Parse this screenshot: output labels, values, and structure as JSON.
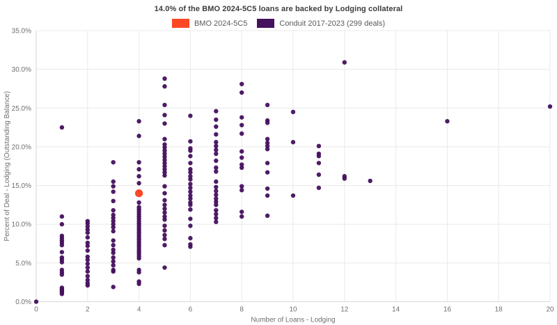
{
  "title": "14.0% of the BMO 2024-5C5 loans are backed by Lodging collateral",
  "legend": [
    {
      "label": "BMO 2024-5C5",
      "color": "#fb4724"
    },
    {
      "label": "Conduit 2017-2023 (299 deals)",
      "color": "#45105e"
    }
  ],
  "colors": {
    "grid": "#e9e9e9",
    "axis_line": "#d6d6d6",
    "tick_label": "#6e6e6e",
    "axis_title": "#6e6e6e"
  },
  "chart_data": {
    "type": "scatter",
    "title": "14.0% of the BMO 2024-5C5 loans are backed by Lodging collateral",
    "xlabel": "Number of Loans - Lodging",
    "ylabel": "Percent of Deal - Lodging (Outstanding Balance)",
    "xlim": [
      0,
      20
    ],
    "ylim": [
      0,
      35
    ],
    "grid": true,
    "legend_position": "top-center",
    "x_tick_values": [
      0,
      2,
      4,
      6,
      8,
      10,
      12,
      14,
      16,
      18,
      20
    ],
    "x_tick_labels": [
      "0",
      "2",
      "4",
      "6",
      "8",
      "10",
      "12",
      "14",
      "16",
      "18",
      "20"
    ],
    "y_tick_values": [
      0,
      5,
      10,
      15,
      20,
      25,
      30,
      35
    ],
    "y_tick_labels": [
      "0.0%",
      "5.0%",
      "10.0%",
      "15.0%",
      "20.0%",
      "25.0%",
      "30.0%",
      "35.0%"
    ],
    "series": [
      {
        "name": "Conduit 2017-2023 (299 deals)",
        "color": "#45105e",
        "marker_radius": 3.2,
        "points": [
          [
            0,
            0.0
          ],
          [
            1,
            22.5
          ],
          [
            1,
            11.0
          ],
          [
            1,
            10.0
          ],
          [
            1,
            8.5
          ],
          [
            1,
            8.2
          ],
          [
            1,
            7.9
          ],
          [
            1,
            7.6
          ],
          [
            1,
            7.3
          ],
          [
            1,
            6.4
          ],
          [
            1,
            5.7
          ],
          [
            1,
            5.4
          ],
          [
            1,
            5.1
          ],
          [
            1,
            4.1
          ],
          [
            1,
            3.8
          ],
          [
            1,
            3.5
          ],
          [
            1,
            1.8
          ],
          [
            1,
            1.6
          ],
          [
            1,
            1.5
          ],
          [
            1,
            1.3
          ],
          [
            1,
            1.2
          ],
          [
            1,
            1.0
          ],
          [
            2,
            10.4
          ],
          [
            2,
            10.1
          ],
          [
            2,
            9.7
          ],
          [
            2,
            9.3
          ],
          [
            2,
            8.9
          ],
          [
            2,
            8.3
          ],
          [
            2,
            7.6
          ],
          [
            2,
            7.2
          ],
          [
            2,
            6.6
          ],
          [
            2,
            5.8
          ],
          [
            2,
            5.4
          ],
          [
            2,
            4.9
          ],
          [
            2,
            4.4
          ],
          [
            2,
            3.9
          ],
          [
            2,
            3.3
          ],
          [
            2,
            2.8
          ],
          [
            2,
            2.4
          ],
          [
            2,
            2.1
          ],
          [
            3,
            18.0
          ],
          [
            3,
            15.5
          ],
          [
            3,
            14.9
          ],
          [
            3,
            14.2
          ],
          [
            3,
            13.0
          ],
          [
            3,
            11.8
          ],
          [
            3,
            11.2
          ],
          [
            3,
            10.8
          ],
          [
            3,
            10.4
          ],
          [
            3,
            10.0
          ],
          [
            3,
            9.6
          ],
          [
            3,
            9.1
          ],
          [
            3,
            7.9
          ],
          [
            3,
            7.3
          ],
          [
            3,
            6.7
          ],
          [
            3,
            6.3
          ],
          [
            3,
            5.7
          ],
          [
            3,
            5.2
          ],
          [
            3,
            4.7
          ],
          [
            3,
            4.1
          ],
          [
            3,
            3.9
          ],
          [
            3,
            1.9
          ],
          [
            4,
            23.3
          ],
          [
            4,
            21.4
          ],
          [
            4,
            18.0
          ],
          [
            4,
            17.1
          ],
          [
            4,
            16.2
          ],
          [
            4,
            15.3
          ],
          [
            4,
            12.8
          ],
          [
            4,
            12.2
          ],
          [
            4,
            11.9
          ],
          [
            4,
            11.6
          ],
          [
            4,
            11.3
          ],
          [
            4,
            11.0
          ],
          [
            4,
            10.7
          ],
          [
            4,
            10.4
          ],
          [
            4,
            10.1
          ],
          [
            4,
            9.8
          ],
          [
            4,
            9.5
          ],
          [
            4,
            9.2
          ],
          [
            4,
            8.9
          ],
          [
            4,
            8.6
          ],
          [
            4,
            8.3
          ],
          [
            4,
            8.0
          ],
          [
            4,
            7.7
          ],
          [
            4,
            7.4
          ],
          [
            4,
            7.1
          ],
          [
            4,
            6.8
          ],
          [
            4,
            6.5
          ],
          [
            4,
            6.2
          ],
          [
            4,
            5.9
          ],
          [
            4,
            5.6
          ],
          [
            4,
            4.1
          ],
          [
            4,
            3.8
          ],
          [
            4,
            2.6
          ],
          [
            4,
            2.3
          ],
          [
            5,
            28.8
          ],
          [
            5,
            27.8
          ],
          [
            5,
            25.4
          ],
          [
            5,
            24.1
          ],
          [
            5,
            23.0
          ],
          [
            5,
            21.0
          ],
          [
            5,
            20.3
          ],
          [
            5,
            19.9
          ],
          [
            5,
            19.5
          ],
          [
            5,
            19.1
          ],
          [
            5,
            18.7
          ],
          [
            5,
            18.3
          ],
          [
            5,
            17.9
          ],
          [
            5,
            17.5
          ],
          [
            5,
            17.1
          ],
          [
            5,
            16.7
          ],
          [
            5,
            16.3
          ],
          [
            5,
            14.9
          ],
          [
            5,
            14.0
          ],
          [
            5,
            13.1
          ],
          [
            5,
            12.5
          ],
          [
            5,
            12.0
          ],
          [
            5,
            11.5
          ],
          [
            5,
            11.0
          ],
          [
            5,
            10.6
          ],
          [
            5,
            9.8
          ],
          [
            5,
            9.2
          ],
          [
            5,
            8.6
          ],
          [
            5,
            8.1
          ],
          [
            5,
            7.3
          ],
          [
            5,
            4.4
          ],
          [
            6,
            24.0
          ],
          [
            6,
            20.7
          ],
          [
            6,
            19.8
          ],
          [
            6,
            19.5
          ],
          [
            6,
            18.8
          ],
          [
            6,
            17.9
          ],
          [
            6,
            17.1
          ],
          [
            6,
            16.7
          ],
          [
            6,
            16.2
          ],
          [
            6,
            15.8
          ],
          [
            6,
            15.2
          ],
          [
            6,
            14.7
          ],
          [
            6,
            14.2
          ],
          [
            6,
            13.7
          ],
          [
            6,
            13.3
          ],
          [
            6,
            12.8
          ],
          [
            6,
            12.5
          ],
          [
            6,
            11.9
          ],
          [
            6,
            10.7
          ],
          [
            6,
            9.8
          ],
          [
            6,
            8.2
          ],
          [
            6,
            7.4
          ],
          [
            6,
            7.1
          ],
          [
            7,
            24.6
          ],
          [
            7,
            23.5
          ],
          [
            7,
            22.6
          ],
          [
            7,
            21.6
          ],
          [
            7,
            20.6
          ],
          [
            7,
            20.1
          ],
          [
            7,
            19.6
          ],
          [
            7,
            19.1
          ],
          [
            7,
            18.2
          ],
          [
            7,
            17.3
          ],
          [
            7,
            16.8
          ],
          [
            7,
            15.5
          ],
          [
            7,
            14.8
          ],
          [
            7,
            14.3
          ],
          [
            7,
            13.8
          ],
          [
            7,
            13.3
          ],
          [
            7,
            12.9
          ],
          [
            7,
            12.5
          ],
          [
            7,
            11.8
          ],
          [
            7,
            11.3
          ],
          [
            7,
            10.8
          ],
          [
            7,
            10.3
          ],
          [
            8,
            28.1
          ],
          [
            8,
            27.0
          ],
          [
            8,
            23.8
          ],
          [
            8,
            22.8
          ],
          [
            8,
            21.7
          ],
          [
            8,
            19.4
          ],
          [
            8,
            18.6
          ],
          [
            8,
            17.7
          ],
          [
            8,
            17.3
          ],
          [
            8,
            14.9
          ],
          [
            8,
            14.4
          ],
          [
            8,
            11.6
          ],
          [
            8,
            11.0
          ],
          [
            9,
            25.4
          ],
          [
            9,
            23.4
          ],
          [
            9,
            23.1
          ],
          [
            9,
            21.0
          ],
          [
            9,
            20.5
          ],
          [
            9,
            20.1
          ],
          [
            9,
            19.7
          ],
          [
            9,
            17.9
          ],
          [
            9,
            16.7
          ],
          [
            9,
            14.6
          ],
          [
            9,
            13.7
          ],
          [
            9,
            11.1
          ],
          [
            10,
            24.5
          ],
          [
            10,
            20.6
          ],
          [
            10,
            13.7
          ],
          [
            11,
            20.1
          ],
          [
            11,
            19.1
          ],
          [
            11,
            18.8
          ],
          [
            11,
            17.9
          ],
          [
            11,
            16.4
          ],
          [
            11,
            14.7
          ],
          [
            12,
            30.9
          ],
          [
            12,
            16.2
          ],
          [
            12,
            15.9
          ],
          [
            13,
            15.6
          ],
          [
            16,
            23.3
          ],
          [
            20,
            25.2
          ]
        ]
      },
      {
        "name": "BMO 2024-5C5",
        "color": "#fb4724",
        "marker_radius": 5.6,
        "points": [
          [
            4,
            14.0
          ]
        ]
      }
    ]
  }
}
